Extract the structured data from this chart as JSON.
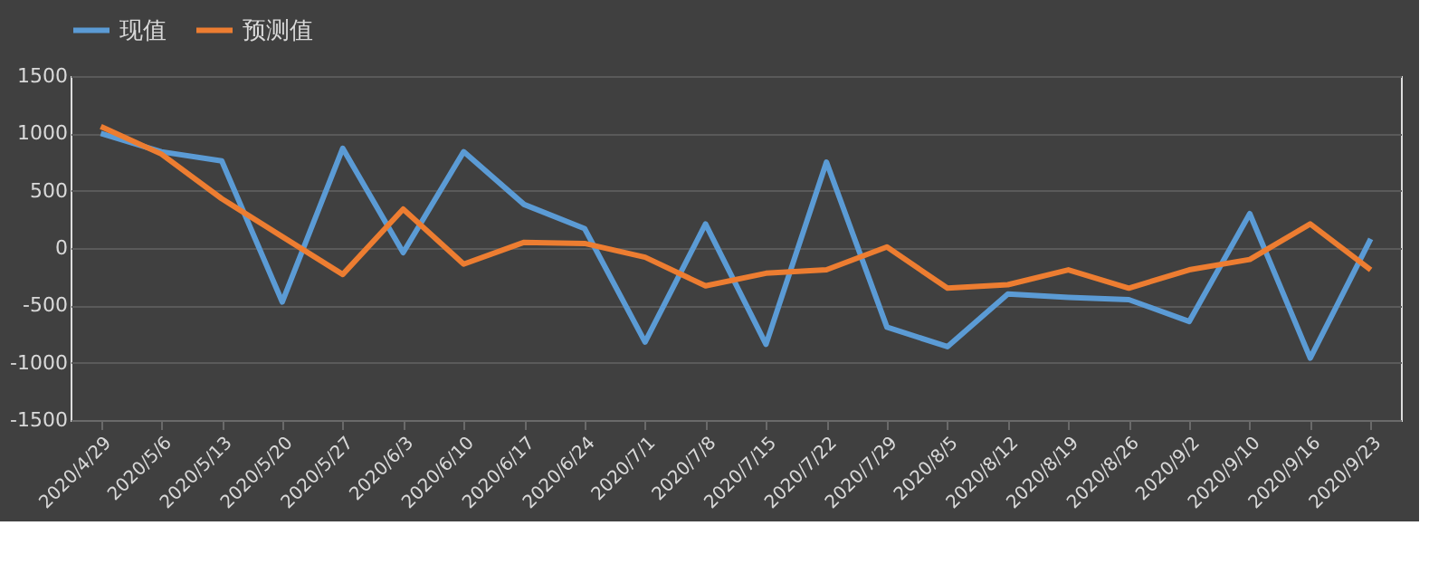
{
  "chart_data": {
    "type": "line",
    "categories": [
      "2020/4/29",
      "2020/5/6",
      "2020/5/13",
      "2020/5/20",
      "2020/5/27",
      "2020/6/3",
      "2020/6/10",
      "2020/6/17",
      "2020/6/24",
      "2020/7/1",
      "2020/7/8",
      "2020/7/15",
      "2020/7/22",
      "2020/7/29",
      "2020/8/5",
      "2020/8/12",
      "2020/8/19",
      "2020/8/26",
      "2020/9/2",
      "2020/9/10",
      "2020/9/16",
      "2020/9/23"
    ],
    "series": [
      {
        "name": "现值",
        "color": "#5b9bd5",
        "values": [
          1000,
          840,
          760,
          -470,
          870,
          -40,
          840,
          380,
          170,
          -820,
          210,
          -840,
          750,
          -690,
          -860,
          -400,
          -430,
          -450,
          -640,
          300,
          -960,
          80
        ]
      },
      {
        "name": "预测值",
        "color": "#ed7d31",
        "values": [
          1060,
          820,
          430,
          100,
          -230,
          340,
          -140,
          50,
          40,
          -80,
          -330,
          -220,
          -190,
          10,
          -350,
          -320,
          -190,
          -350,
          -190,
          -100,
          210,
          -190
        ]
      }
    ],
    "ylim": [
      -1500,
      1500
    ],
    "yticks": [
      -1500,
      -1000,
      -500,
      0,
      500,
      1000,
      1500
    ],
    "grid": "y",
    "legend": "top",
    "marker": "none",
    "line_style": "solid"
  }
}
